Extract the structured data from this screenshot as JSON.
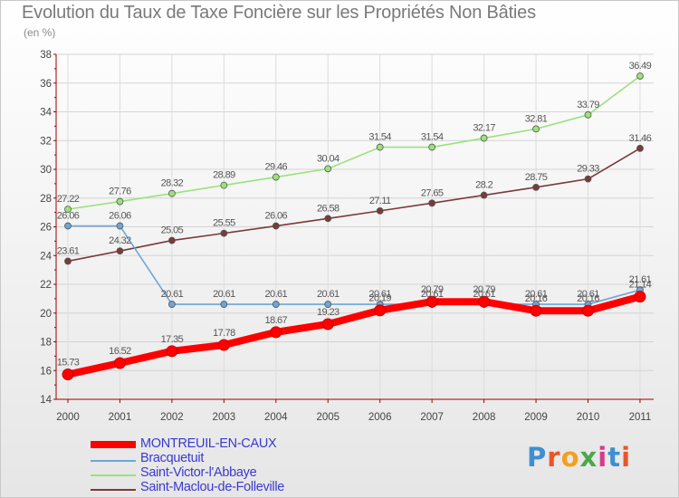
{
  "title": "Evolution du Taux de Taxe Foncière sur les Propriétés Non Bâties",
  "subtitle": "(en %)",
  "logo": {
    "text": "Proxiti",
    "letters": [
      "P",
      "r",
      "o",
      "x",
      "i",
      "t",
      "i"
    ],
    "colors": [
      "#3f8fd0",
      "#e8562a",
      "#f2a020",
      "#4aa84a",
      "#d83a8a",
      "#3f8fd0",
      "#e8562a"
    ]
  },
  "chart_data": {
    "type": "line",
    "title": "Evolution du Taux de Taxe Foncière sur les Propriétés Non Bâties",
    "ylabel": "(en %)",
    "x": [
      "2000",
      "2001",
      "2002",
      "2003",
      "2004",
      "2005",
      "2006",
      "2007",
      "2008",
      "2009",
      "2010",
      "2011"
    ],
    "ylim": [
      14,
      38
    ],
    "yticks": [
      14,
      16,
      18,
      20,
      22,
      24,
      26,
      28,
      30,
      32,
      34,
      36,
      38
    ],
    "grid": true,
    "legend_position": "bottom-left",
    "series": [
      {
        "name": "MONTREUIL-EN-CAUX",
        "color": "#ff0000",
        "values": [
          15.73,
          16.52,
          17.35,
          17.78,
          18.67,
          19.23,
          20.19,
          20.79,
          20.79,
          20.16,
          20.16,
          21.14
        ],
        "labels": [
          "15.73",
          "16.52",
          "17.35",
          "17.78",
          "18.67",
          "19.23",
          "20.19",
          "20.79",
          "20.79",
          "20.16",
          "20.16",
          "21.14"
        ]
      },
      {
        "name": "Bracquetuit",
        "color": "#6fa5d6",
        "values": [
          26.06,
          26.06,
          20.61,
          20.61,
          20.61,
          20.61,
          20.61,
          20.61,
          20.61,
          20.61,
          20.61,
          21.61
        ],
        "labels": [
          "26.06",
          "26.06",
          "20.61",
          "20.61",
          "20.61",
          "20.61",
          "20.61",
          "20.61",
          "20.61",
          "20.61",
          "20.61",
          "21.61"
        ]
      },
      {
        "name": "Saint-Victor-l'Abbaye",
        "color": "#9ae27a",
        "values": [
          27.22,
          27.76,
          28.32,
          28.89,
          29.46,
          30.04,
          31.54,
          31.54,
          32.17,
          32.81,
          33.79,
          36.49
        ],
        "labels": [
          "27.22",
          "27.76",
          "28.32",
          "28.89",
          "29.46",
          "30.04",
          "31.54",
          "31.54",
          "32.17",
          "32.81",
          "33.79",
          "36.49"
        ]
      },
      {
        "name": "Saint-Maclou-de-Folleville",
        "color": "#7a3a3a",
        "values": [
          23.61,
          24.32,
          25.05,
          25.55,
          26.06,
          26.58,
          27.11,
          27.65,
          28.2,
          28.75,
          29.33,
          31.46
        ],
        "labels": [
          "23.61",
          "24.32",
          "25.05",
          "25.55",
          "26.06",
          "26.58",
          "27.11",
          "27.65",
          "28.2",
          "28.75",
          "29.33",
          "31.46"
        ]
      }
    ]
  }
}
